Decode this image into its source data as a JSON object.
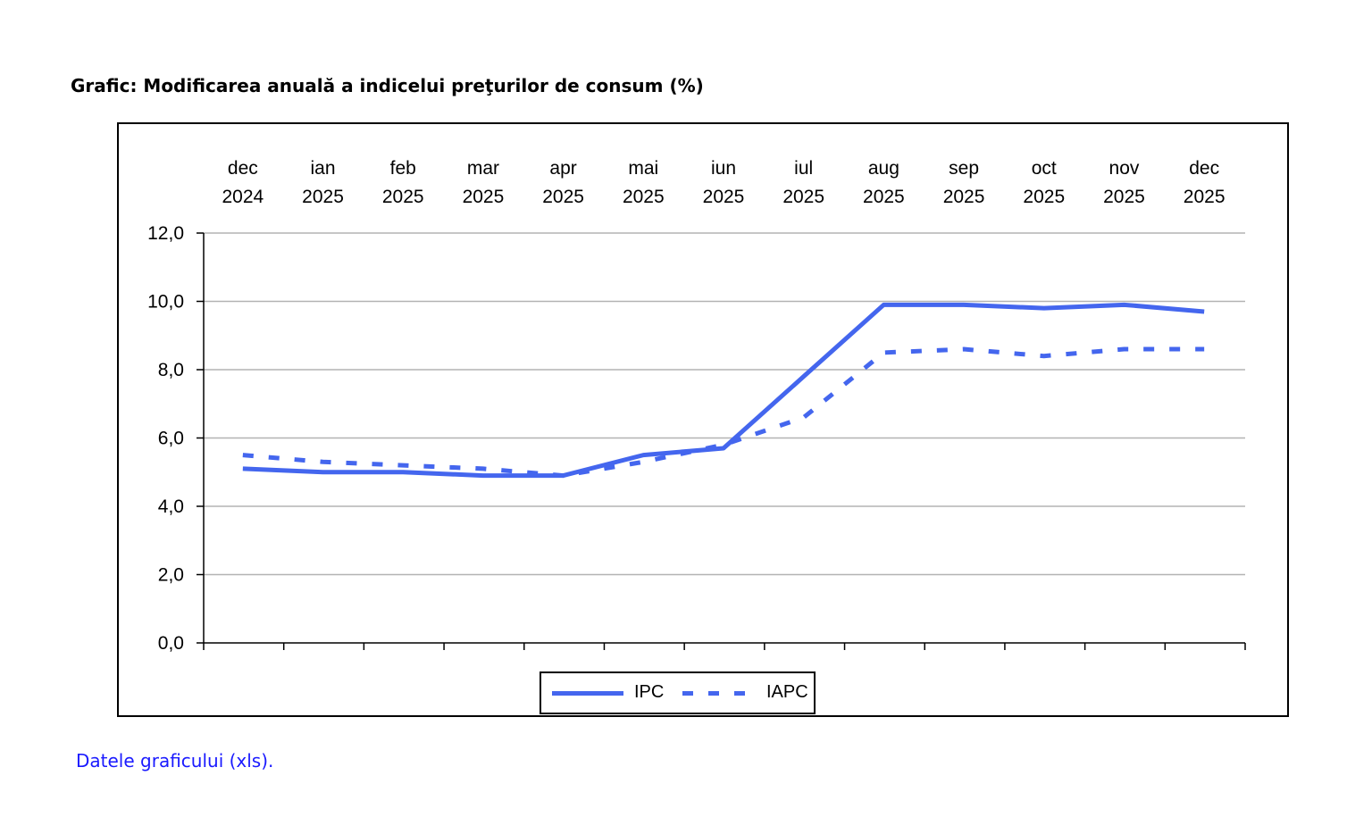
{
  "title": "Grafic: Modificarea anuală a indicelui preţurilor de consum (%)",
  "link_text": "Datele graficului (xls).",
  "colors": {
    "series": "#4466ee",
    "grid": "#b3b3b3",
    "axis": "#000000",
    "link": "#1a1aff"
  },
  "chart_data": {
    "type": "line",
    "title": "Grafic: Modificarea anuală a indicelui preţurilor de consum (%)",
    "xlabel": "",
    "ylabel": "",
    "x_axis_position": "top",
    "categories": [
      [
        "dec",
        "2024"
      ],
      [
        "ian",
        "2025"
      ],
      [
        "feb",
        "2025"
      ],
      [
        "mar",
        "2025"
      ],
      [
        "apr",
        "2025"
      ],
      [
        "mai",
        "2025"
      ],
      [
        "iun",
        "2025"
      ],
      [
        "iul",
        "2025"
      ],
      [
        "aug",
        "2025"
      ],
      [
        "sep",
        "2025"
      ],
      [
        "oct",
        "2025"
      ],
      [
        "nov",
        "2025"
      ],
      [
        "dec",
        "2025"
      ]
    ],
    "ylim": [
      0,
      12
    ],
    "y_ticks": [
      "0,0",
      "2,0",
      "4,0",
      "6,0",
      "8,0",
      "10,0",
      "12,0"
    ],
    "y_tick_values": [
      0,
      2,
      4,
      6,
      8,
      10,
      12
    ],
    "grid": true,
    "legend_position": "bottom-center",
    "series": [
      {
        "name": "IPC",
        "style": "solid",
        "values": [
          5.1,
          5.0,
          5.0,
          4.9,
          4.9,
          5.5,
          5.7,
          7.8,
          9.9,
          9.9,
          9.8,
          9.9,
          9.7
        ]
      },
      {
        "name": "IAPC",
        "style": "dotted",
        "values": [
          5.5,
          5.3,
          5.2,
          5.1,
          4.9,
          5.3,
          5.8,
          6.6,
          8.5,
          8.6,
          8.4,
          8.6,
          8.6
        ]
      }
    ]
  }
}
